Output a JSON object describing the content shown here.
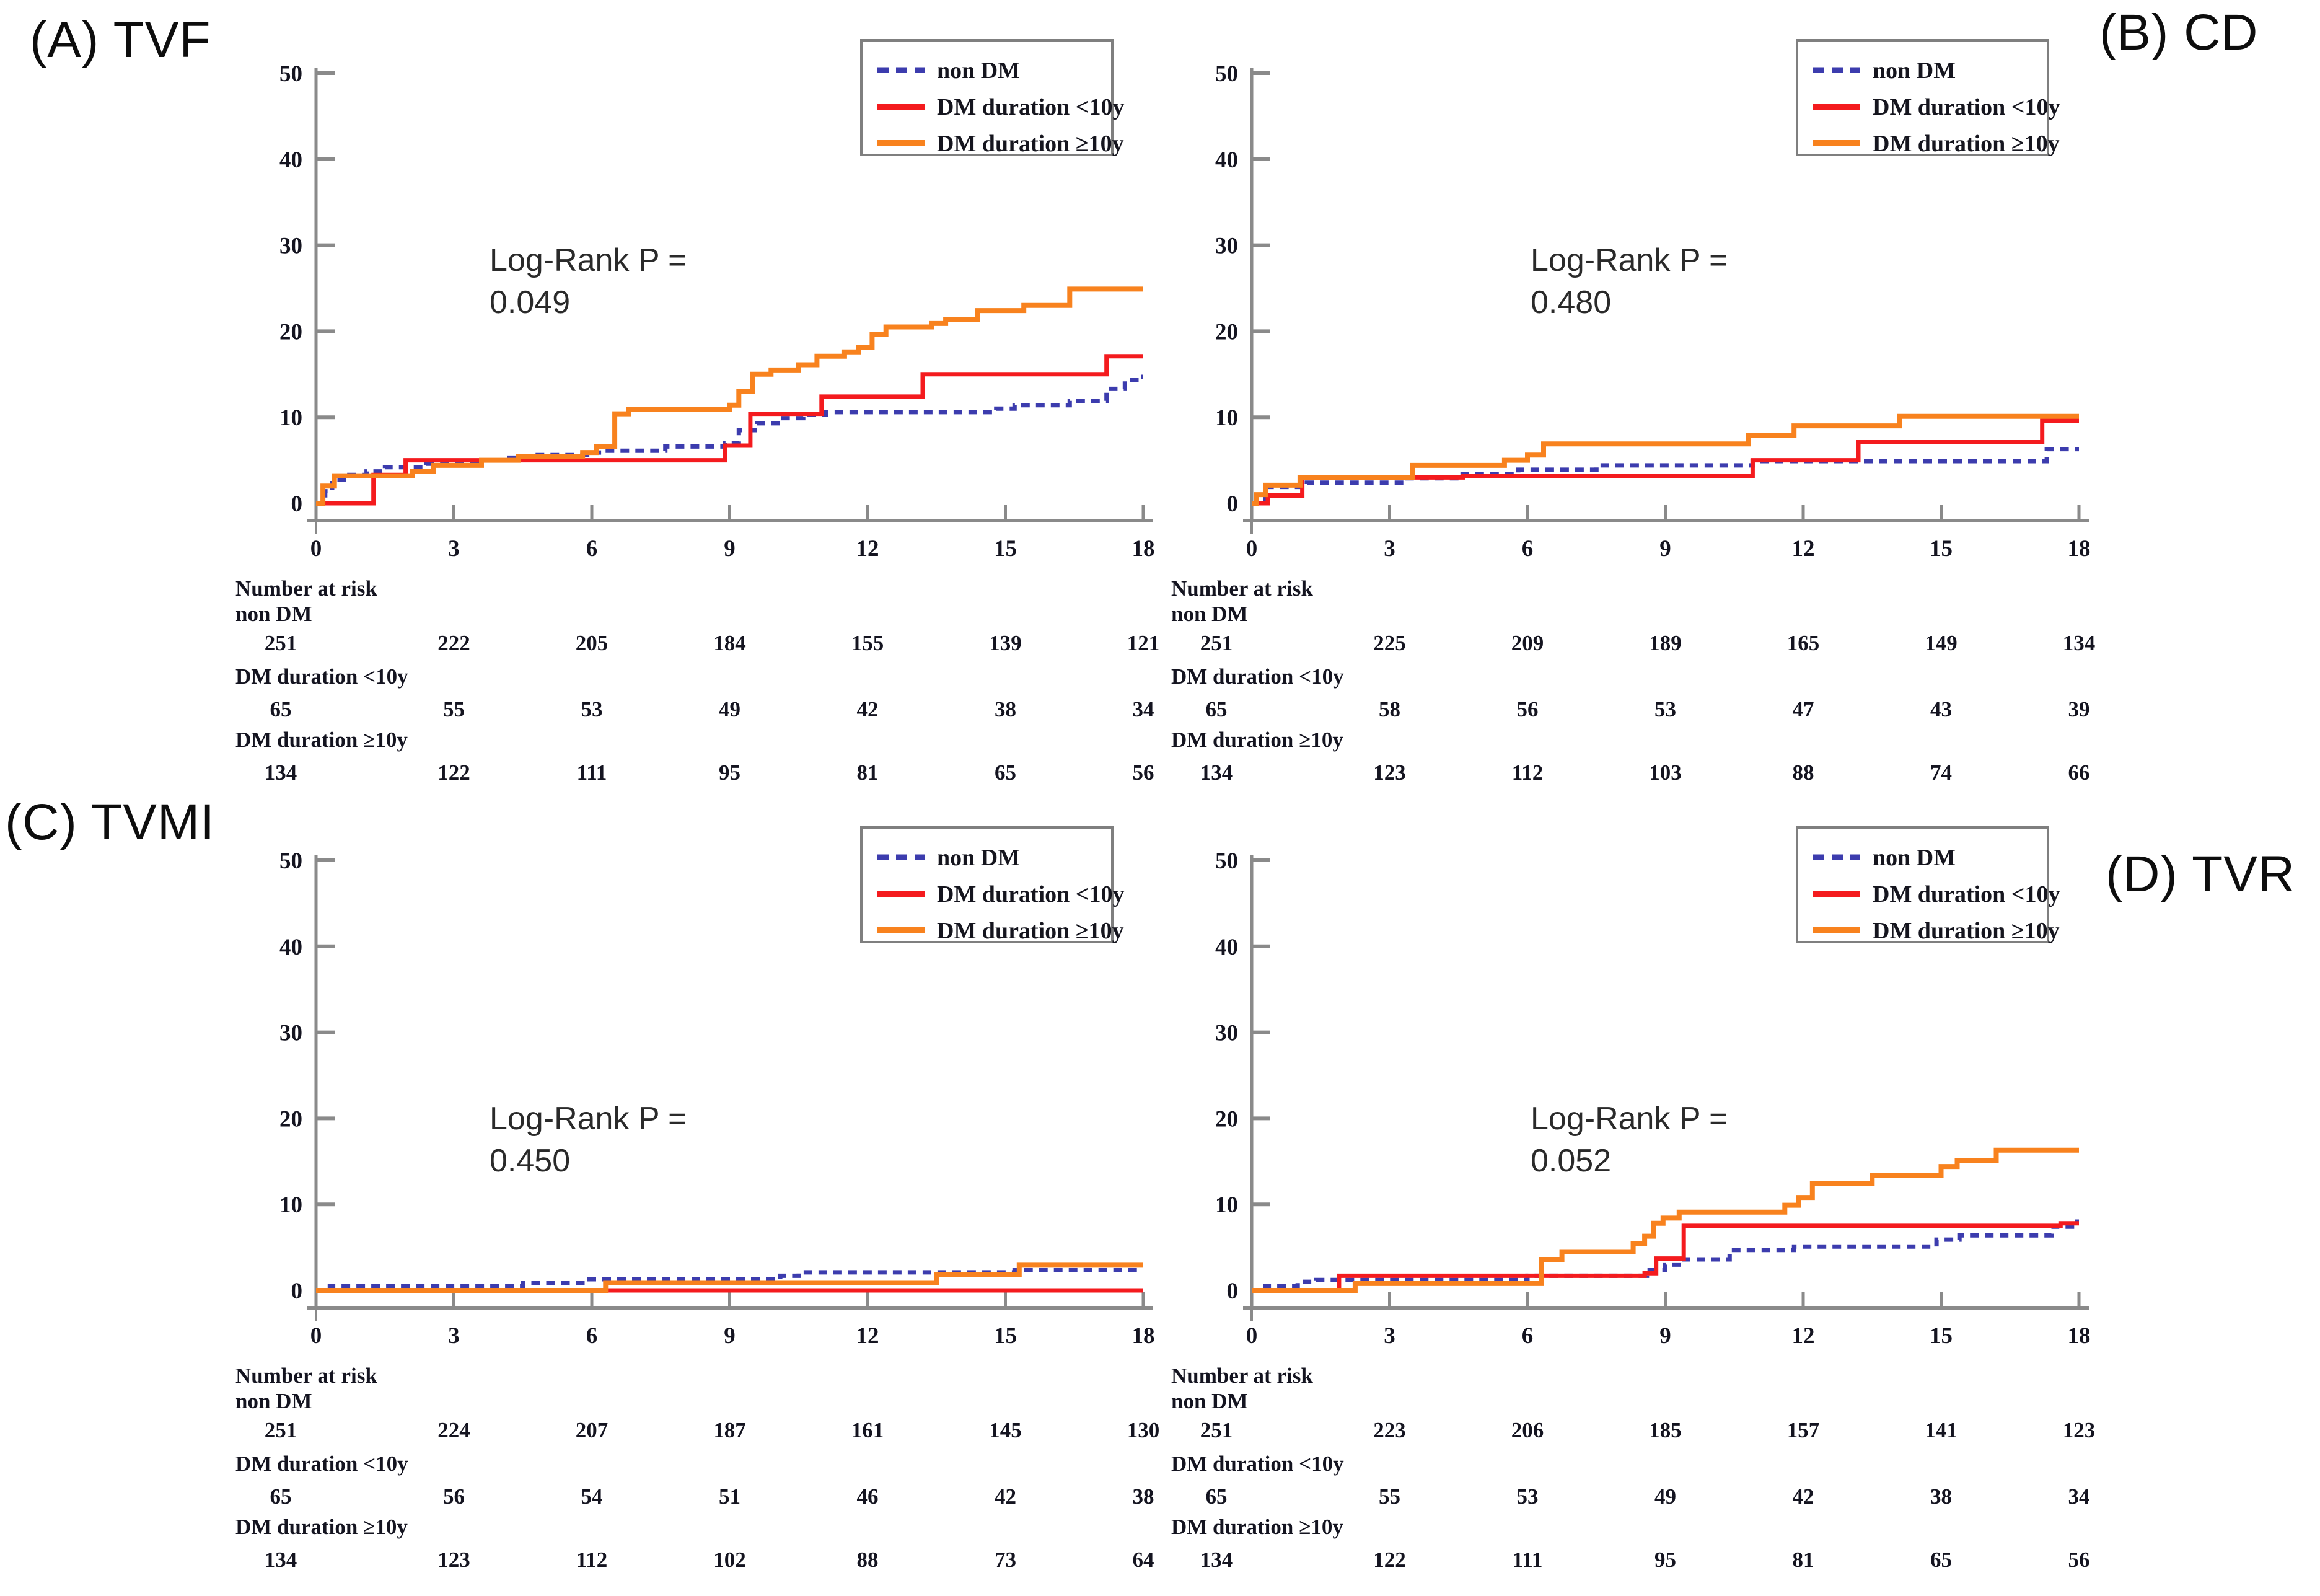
{
  "figure": {
    "colors": {
      "non_dm": "#3c3cae",
      "dm_lt10": "#f41b1e",
      "dm_ge10": "#f8821e",
      "axis": "#8a8a8a",
      "tick_label": "#141420",
      "legend_border": "#7f7f7f",
      "legend_text": "#15151e",
      "annotation": "#2a2a2a"
    }
  },
  "chart_data": [
    {
      "type": "line",
      "subtype": "step",
      "panel_label": "(A) TVF",
      "annotation": {
        "line1": "Log-Rank P =",
        "line2": "0.049",
        "pos": [
          630,
          412
        ]
      },
      "xlabel": "",
      "ylabel": "",
      "xlim": [
        0,
        18
      ],
      "ylim": [
        0,
        52
      ],
      "x_ticks": [
        0,
        3,
        6,
        9,
        12,
        15,
        18
      ],
      "y_ticks": [
        0,
        10,
        20,
        30,
        40,
        50
      ],
      "grid": false,
      "legend_position": "top-right",
      "series": [
        {
          "name": "non DM",
          "color_key": "non_dm",
          "dash": true,
          "points": [
            [
              0,
              0
            ],
            [
              0.2,
              1.4
            ],
            [
              0.35,
              2.7
            ],
            [
              0.6,
              3.3
            ],
            [
              1.1,
              3.7
            ],
            [
              1.5,
              4.2
            ],
            [
              2.4,
              4.6
            ],
            [
              3.5,
              5.0
            ],
            [
              4.2,
              5.3
            ],
            [
              4.7,
              5.6
            ],
            [
              5.9,
              5.9
            ],
            [
              6.3,
              6.1
            ],
            [
              7.6,
              6.6
            ],
            [
              8.9,
              7.0
            ],
            [
              9.2,
              8.5
            ],
            [
              9.6,
              9.3
            ],
            [
              10.1,
              9.9
            ],
            [
              10.6,
              10.3
            ],
            [
              11.1,
              10.6
            ],
            [
              14.8,
              11.0
            ],
            [
              15.2,
              11.4
            ],
            [
              16.4,
              11.9
            ],
            [
              17.2,
              13.3
            ],
            [
              17.6,
              14.3
            ],
            [
              17.95,
              14.7
            ]
          ]
        },
        {
          "name": "DM duration <10y",
          "color_key": "dm_lt10",
          "dash": false,
          "points": [
            [
              0,
              0
            ],
            [
              1.25,
              3.3
            ],
            [
              1.95,
              5.0
            ],
            [
              8.9,
              6.7
            ],
            [
              9.45,
              10.4
            ],
            [
              11.0,
              12.4
            ],
            [
              13.2,
              15.0
            ],
            [
              17.2,
              17.1
            ]
          ]
        },
        {
          "name": "DM duration ≥10y",
          "color_key": "dm_ge10",
          "dash": false,
          "points": [
            [
              0,
              0
            ],
            [
              0.15,
              2.0
            ],
            [
              0.4,
              3.2
            ],
            [
              2.1,
              3.7
            ],
            [
              2.55,
              4.4
            ],
            [
              3.6,
              5.0
            ],
            [
              4.4,
              5.4
            ],
            [
              5.8,
              5.9
            ],
            [
              6.1,
              6.6
            ],
            [
              6.5,
              10.4
            ],
            [
              6.8,
              10.9
            ],
            [
              9.0,
              11.4
            ],
            [
              9.2,
              13.0
            ],
            [
              9.5,
              15.0
            ],
            [
              9.9,
              15.5
            ],
            [
              10.5,
              16.1
            ],
            [
              10.9,
              17.1
            ],
            [
              11.5,
              17.6
            ],
            [
              11.8,
              18.1
            ],
            [
              12.1,
              19.6
            ],
            [
              12.4,
              20.5
            ],
            [
              13.4,
              20.9
            ],
            [
              13.7,
              21.4
            ],
            [
              14.4,
              22.4
            ],
            [
              15.4,
              23.0
            ],
            [
              16.4,
              24.9
            ]
          ]
        }
      ],
      "number_at_risk": {
        "title": "Number at risk",
        "times": [
          0,
          3,
          6,
          9,
          12,
          15,
          18
        ],
        "rows": [
          {
            "label": "non DM",
            "values": [
              251,
              222,
              205,
              184,
              155,
              139,
              121
            ]
          },
          {
            "label": "DM duration <10y",
            "values": [
              65,
              55,
              53,
              49,
              42,
              38,
              34
            ]
          },
          {
            "label": "DM duration ≥10y",
            "values": [
              134,
              122,
              111,
              95,
              81,
              65,
              56
            ]
          }
        ]
      }
    },
    {
      "type": "line",
      "subtype": "step",
      "panel_label": "(B) CD",
      "annotation": {
        "line1": "Log-Rank P =",
        "line2": "0.480",
        "pos": [
          800,
          412
        ]
      },
      "xlabel": "",
      "ylabel": "",
      "xlim": [
        0,
        18
      ],
      "ylim": [
        0,
        52
      ],
      "x_ticks": [
        0,
        3,
        6,
        9,
        12,
        15,
        18
      ],
      "y_ticks": [
        0,
        10,
        20,
        30,
        40,
        50
      ],
      "grid": false,
      "legend_position": "top-right",
      "series": [
        {
          "name": "non DM",
          "color_key": "non_dm",
          "dash": true,
          "points": [
            [
              0,
              0
            ],
            [
              0.3,
              1.9
            ],
            [
              1.2,
              2.4
            ],
            [
              3.3,
              2.9
            ],
            [
              4.5,
              3.4
            ],
            [
              5.8,
              3.9
            ],
            [
              7.5,
              4.4
            ],
            [
              10.9,
              4.9
            ],
            [
              17.3,
              6.3
            ]
          ]
        },
        {
          "name": "DM duration <10y",
          "color_key": "dm_lt10",
          "dash": false,
          "points": [
            [
              0,
              0
            ],
            [
              0.35,
              0.9
            ],
            [
              1.1,
              3.0
            ],
            [
              4.6,
              3.2
            ],
            [
              10.9,
              5.0
            ],
            [
              13.2,
              7.1
            ],
            [
              17.2,
              9.6
            ]
          ]
        },
        {
          "name": "DM duration ≥10y",
          "color_key": "dm_ge10",
          "dash": false,
          "points": [
            [
              0,
              0
            ],
            [
              0.1,
              1.0
            ],
            [
              0.3,
              2.1
            ],
            [
              1.05,
              3.0
            ],
            [
              3.5,
              4.4
            ],
            [
              5.5,
              5.0
            ],
            [
              6.0,
              5.6
            ],
            [
              6.35,
              6.9
            ],
            [
              10.8,
              7.9
            ],
            [
              11.8,
              9.0
            ],
            [
              14.1,
              10.1
            ]
          ]
        }
      ],
      "number_at_risk": {
        "title": "Number at risk",
        "times": [
          0,
          3,
          6,
          9,
          12,
          15,
          18
        ],
        "rows": [
          {
            "label": "non DM",
            "values": [
              251,
              225,
              209,
              189,
              165,
              149,
              134
            ]
          },
          {
            "label": "DM duration <10y",
            "values": [
              65,
              58,
              56,
              53,
              47,
              43,
              39
            ]
          },
          {
            "label": "DM duration ≥10y",
            "values": [
              134,
              123,
              112,
              103,
              88,
              74,
              66
            ]
          }
        ]
      }
    },
    {
      "type": "line",
      "subtype": "step",
      "panel_label": "(C) TVMI",
      "annotation": {
        "line1": "Log-Rank P =",
        "line2": "0.450",
        "pos": [
          630,
          527
        ]
      },
      "xlabel": "",
      "ylabel": "",
      "xlim": [
        0,
        18
      ],
      "ylim": [
        0,
        52
      ],
      "x_ticks": [
        0,
        3,
        6,
        9,
        12,
        15,
        18
      ],
      "y_ticks": [
        0,
        10,
        20,
        30,
        40,
        50
      ],
      "grid": false,
      "legend_position": "top-right",
      "series": [
        {
          "name": "non DM",
          "color_key": "non_dm",
          "dash": true,
          "points": [
            [
              0,
              0
            ],
            [
              0.3,
              0.5
            ],
            [
              4.5,
              0.9
            ],
            [
              5.9,
              1.3
            ],
            [
              10.1,
              1.7
            ],
            [
              10.5,
              2.1
            ],
            [
              15.2,
              2.4
            ]
          ]
        },
        {
          "name": "DM duration <10y",
          "color_key": "dm_lt10",
          "dash": false,
          "points": [
            [
              0,
              0
            ]
          ]
        },
        {
          "name": "DM duration ≥10y",
          "color_key": "dm_ge10",
          "dash": false,
          "points": [
            [
              0,
              0
            ],
            [
              6.3,
              0.9
            ],
            [
              13.5,
              1.8
            ],
            [
              15.3,
              3.0
            ]
          ]
        }
      ],
      "number_at_risk": {
        "title": "Number at risk",
        "times": [
          0,
          3,
          6,
          9,
          12,
          15,
          18
        ],
        "rows": [
          {
            "label": "non DM",
            "values": [
              251,
              224,
              207,
              187,
              161,
              145,
              130
            ]
          },
          {
            "label": "DM duration <10y",
            "values": [
              65,
              56,
              54,
              51,
              46,
              42,
              38
            ]
          },
          {
            "label": "DM duration ≥10y",
            "values": [
              134,
              123,
              112,
              102,
              88,
              73,
              64
            ]
          }
        ]
      }
    },
    {
      "type": "line",
      "subtype": "step",
      "panel_label": "(D) TVR",
      "annotation": {
        "line1": "Log-Rank P =",
        "line2": "0.052",
        "pos": [
          800,
          527
        ]
      },
      "xlabel": "",
      "ylabel": "",
      "xlim": [
        0,
        18
      ],
      "ylim": [
        0,
        52
      ],
      "x_ticks": [
        0,
        3,
        6,
        9,
        12,
        15,
        18
      ],
      "y_ticks": [
        0,
        10,
        20,
        30,
        40,
        50
      ],
      "grid": false,
      "legend_position": "top-right",
      "series": [
        {
          "name": "non DM",
          "color_key": "non_dm",
          "dash": true,
          "points": [
            [
              0,
              0
            ],
            [
              0.3,
              0.5
            ],
            [
              1.0,
              1.0
            ],
            [
              1.4,
              1.2
            ],
            [
              6.0,
              1.7
            ],
            [
              8.6,
              2.4
            ],
            [
              9.0,
              3.0
            ],
            [
              9.35,
              3.6
            ],
            [
              10.4,
              4.7
            ],
            [
              11.8,
              5.1
            ],
            [
              14.9,
              5.9
            ],
            [
              15.4,
              6.4
            ],
            [
              17.4,
              7.4
            ],
            [
              17.9,
              8.0
            ]
          ]
        },
        {
          "name": "DM duration <10y",
          "color_key": "dm_lt10",
          "dash": false,
          "points": [
            [
              0,
              0
            ],
            [
              1.9,
              1.7
            ],
            [
              8.55,
              2.0
            ],
            [
              8.8,
              3.7
            ],
            [
              9.4,
              7.5
            ],
            [
              17.6,
              7.8
            ]
          ]
        },
        {
          "name": "DM duration ≥10y",
          "color_key": "dm_ge10",
          "dash": false,
          "points": [
            [
              0,
              0
            ],
            [
              2.25,
              0.8
            ],
            [
              6.3,
              3.6
            ],
            [
              6.75,
              4.5
            ],
            [
              8.3,
              5.4
            ],
            [
              8.55,
              6.3
            ],
            [
              8.75,
              7.8
            ],
            [
              8.95,
              8.4
            ],
            [
              9.3,
              9.1
            ],
            [
              11.6,
              9.9
            ],
            [
              11.9,
              10.8
            ],
            [
              12.2,
              12.4
            ],
            [
              13.5,
              13.4
            ],
            [
              15.0,
              14.4
            ],
            [
              15.35,
              15.1
            ],
            [
              16.2,
              16.3
            ]
          ]
        }
      ],
      "number_at_risk": {
        "title": "Number at risk",
        "times": [
          0,
          3,
          6,
          9,
          12,
          15,
          18
        ],
        "rows": [
          {
            "label": "non DM",
            "values": [
              251,
              223,
              206,
              185,
              157,
              141,
              123
            ]
          },
          {
            "label": "DM duration <10y",
            "values": [
              65,
              55,
              53,
              49,
              42,
              38,
              34
            ]
          },
          {
            "label": "DM duration ≥10y",
            "values": [
              134,
              122,
              111,
              95,
              81,
              65,
              56
            ]
          }
        ]
      }
    }
  ]
}
